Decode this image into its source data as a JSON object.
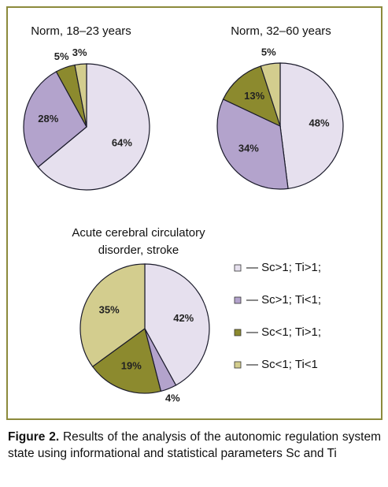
{
  "chart_data": [
    {
      "type": "pie",
      "title": "Norm, 18–23  years",
      "categories": [
        "— Sc>1; Ti>1;",
        "— Sc>1; Ti<1;",
        "— Sc<1; Ti>1;",
        "— Sc<1; Ti<1"
      ],
      "values": [
        64,
        28,
        5,
        3
      ],
      "value_labels": [
        "64%",
        "28%",
        "5%",
        "3%"
      ],
      "colors": [
        "#e6e0ee",
        "#b3a3cc",
        "#8c8a2e",
        "#d3cd8e"
      ]
    },
    {
      "type": "pie",
      "title": "Norm, 32–60 years",
      "categories": [
        "— Sc>1; Ti>1;",
        "— Sc>1; Ti<1;",
        "— Sc<1; Ti>1;",
        "— Sc<1; Ti<1"
      ],
      "values": [
        48,
        34,
        13,
        5
      ],
      "value_labels": [
        "48%",
        "34%",
        "13%",
        "5%"
      ],
      "colors": [
        "#e6e0ee",
        "#b3a3cc",
        "#8c8a2e",
        "#d3cd8e"
      ]
    },
    {
      "type": "pie",
      "title": "Acute cerebral circulatory disorder, stroke",
      "categories": [
        "— Sc>1; Ti>1;",
        "— Sc>1; Ti<1;",
        "— Sc<1; Ti>1;",
        "— Sc<1; Ti<1"
      ],
      "values": [
        42,
        4,
        19,
        35
      ],
      "value_labels": [
        "42%",
        "4%",
        "19%",
        "35%"
      ],
      "colors": [
        "#e6e0ee",
        "#b3a3cc",
        "#8c8a2e",
        "#d3cd8e"
      ]
    }
  ],
  "caption": {
    "label": "Figure 2.",
    "text": "Results of the analysis of the autonomic regulation system state using informational and statistical parameters Sc and Ti"
  }
}
